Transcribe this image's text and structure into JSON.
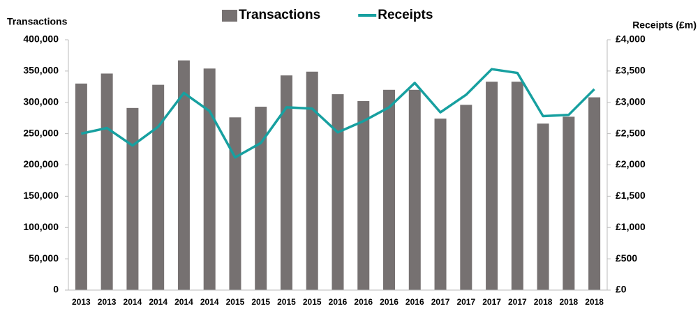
{
  "chart_data": {
    "type": "bar-line",
    "categories": [
      "2013",
      "2013",
      "2014",
      "2014",
      "2014",
      "2014",
      "2015",
      "2015",
      "2015",
      "2015",
      "2016",
      "2016",
      "2016",
      "2016",
      "2017",
      "2017",
      "2017",
      "2017",
      "2018",
      "2018",
      "2018"
    ],
    "ylabel": "Transactions",
    "y2label": "Receipts (£m)",
    "series": [
      {
        "name": "Transactions",
        "type": "bar",
        "color": "#767171",
        "values": [
          330000,
          346000,
          291000,
          328000,
          367000,
          354000,
          276000,
          293000,
          343000,
          349000,
          313000,
          302000,
          320000,
          320000,
          274000,
          296000,
          333000,
          333000,
          266000,
          277000,
          308000
        ]
      },
      {
        "name": "Receipts",
        "type": "line",
        "axis": "y2",
        "color": "#17a0a0",
        "values": [
          2500,
          2590,
          2310,
          2610,
          3150,
          2860,
          2120,
          2350,
          2920,
          2900,
          2520,
          2700,
          2920,
          3310,
          2840,
          3120,
          3530,
          3470,
          2780,
          2800,
          3210
        ]
      }
    ],
    "ylim": [
      0,
      400000
    ],
    "yticks": [
      0,
      {
        "value": 50000,
        "label": "50,000"
      },
      {
        "value": 100000,
        "label": "100,000"
      },
      {
        "value": 150000,
        "label": "150,000"
      },
      {
        "value": 200000,
        "label": "200,000"
      },
      {
        "value": 250000,
        "label": "250,000"
      },
      {
        "value": 300000,
        "label": "300,000"
      },
      {
        "value": 350000,
        "label": "350,000"
      },
      {
        "value": 400000,
        "label": "400,000"
      }
    ],
    "y2lim": [
      0,
      4000
    ],
    "y2ticks": [
      {
        "value": 0,
        "label": "£0"
      },
      {
        "value": 500,
        "label": "£500"
      },
      {
        "value": 1000,
        "label": "£1,000"
      },
      {
        "value": 1500,
        "label": "£1,500"
      },
      {
        "value": 2000,
        "label": "£2,000"
      },
      {
        "value": 2500,
        "label": "£2,500"
      },
      {
        "value": 3000,
        "label": "£3,000"
      },
      {
        "value": 3500,
        "label": "£3,500"
      },
      {
        "value": 4000,
        "label": "£4,000"
      }
    ],
    "legend": "top",
    "grid": false
  }
}
